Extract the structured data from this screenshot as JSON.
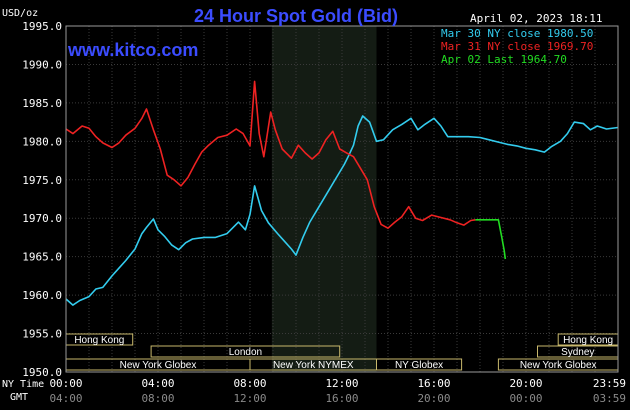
{
  "chart_data": {
    "type": "line",
    "title": "24 Hour Spot Gold (Bid)",
    "unit_label": "USD/oz",
    "watermark": "www.kitco.com",
    "timestamp": "April 02, 2023 18:11",
    "ylim": [
      1950,
      1995
    ],
    "y_ticks": [
      "1995.0",
      "1990.0",
      "1985.0",
      "1980.0",
      "1975.0",
      "1970.0",
      "1965.0",
      "1960.0",
      "1955.0",
      "1950.0"
    ],
    "x_ticks_ny": [
      "00:00",
      "04:00",
      "08:00",
      "12:00",
      "16:00",
      "20:00",
      "23:59"
    ],
    "x_ticks_gmt": [
      "04:00",
      "08:00",
      "12:00",
      "16:00",
      "20:00",
      "00:00",
      "03:59"
    ],
    "x_axis_ny_label": "NY Time",
    "x_axis_gmt_label": "GMT",
    "grid": true,
    "legend": [
      {
        "text": "Mar 30 NY close 1980.50",
        "color": "#33ccee"
      },
      {
        "text": "Mar 31 NY close 1969.70",
        "color": "#ee2222"
      },
      {
        "text": "Apr 02 Last 1964.70",
        "color": "#22dd22"
      }
    ],
    "series": [
      {
        "name": "Mar 30",
        "color": "#33ccee",
        "points": [
          [
            0.0,
            1959.5
          ],
          [
            0.3,
            1958.7
          ],
          [
            0.6,
            1959.3
          ],
          [
            1.0,
            1959.8
          ],
          [
            1.3,
            1960.8
          ],
          [
            1.6,
            1961.0
          ],
          [
            2.0,
            1962.5
          ],
          [
            2.3,
            1963.5
          ],
          [
            2.6,
            1964.5
          ],
          [
            3.0,
            1966.0
          ],
          [
            3.3,
            1968.0
          ],
          [
            3.5,
            1968.8
          ],
          [
            3.8,
            1969.9
          ],
          [
            4.0,
            1968.5
          ],
          [
            4.3,
            1967.6
          ],
          [
            4.6,
            1966.5
          ],
          [
            4.9,
            1965.9
          ],
          [
            5.2,
            1966.8
          ],
          [
            5.5,
            1967.3
          ],
          [
            6.0,
            1967.5
          ],
          [
            6.5,
            1967.5
          ],
          [
            7.0,
            1968.0
          ],
          [
            7.5,
            1969.5
          ],
          [
            7.8,
            1968.5
          ],
          [
            8.0,
            1970.5
          ],
          [
            8.2,
            1974.2
          ],
          [
            8.5,
            1971.0
          ],
          [
            8.8,
            1969.4
          ],
          [
            9.2,
            1968.0
          ],
          [
            9.5,
            1967.0
          ],
          [
            9.8,
            1966.0
          ],
          [
            10.0,
            1965.2
          ],
          [
            10.3,
            1967.5
          ],
          [
            10.6,
            1969.5
          ],
          [
            11.0,
            1971.5
          ],
          [
            11.4,
            1973.5
          ],
          [
            11.8,
            1975.5
          ],
          [
            12.1,
            1977.0
          ],
          [
            12.3,
            1978.2
          ],
          [
            12.5,
            1979.5
          ],
          [
            12.7,
            1982.0
          ],
          [
            12.9,
            1983.3
          ],
          [
            13.2,
            1982.5
          ],
          [
            13.5,
            1980.0
          ],
          [
            13.8,
            1980.2
          ],
          [
            14.2,
            1981.5
          ],
          [
            14.6,
            1982.2
          ],
          [
            15.0,
            1983.0
          ],
          [
            15.3,
            1981.5
          ],
          [
            15.6,
            1982.2
          ],
          [
            16.0,
            1983.0
          ],
          [
            16.3,
            1982.0
          ],
          [
            16.6,
            1980.6
          ],
          [
            17.0,
            1980.6
          ],
          [
            17.5,
            1980.6
          ],
          [
            18.0,
            1980.5
          ],
          [
            18.4,
            1980.2
          ],
          [
            18.8,
            1979.9
          ],
          [
            19.2,
            1979.6
          ],
          [
            19.6,
            1979.4
          ],
          [
            20.0,
            1979.1
          ],
          [
            20.4,
            1978.9
          ],
          [
            20.8,
            1978.6
          ],
          [
            21.1,
            1979.3
          ],
          [
            21.5,
            1980.0
          ],
          [
            21.8,
            1981.0
          ],
          [
            22.1,
            1982.5
          ],
          [
            22.5,
            1982.3
          ],
          [
            22.8,
            1981.5
          ],
          [
            23.1,
            1982.0
          ],
          [
            23.5,
            1981.6
          ],
          [
            24.0,
            1981.8
          ]
        ]
      },
      {
        "name": "Mar 31",
        "color": "#ee2222",
        "points": [
          [
            0.0,
            1981.6
          ],
          [
            0.3,
            1981.0
          ],
          [
            0.7,
            1982.0
          ],
          [
            1.0,
            1981.7
          ],
          [
            1.3,
            1980.6
          ],
          [
            1.6,
            1979.8
          ],
          [
            2.0,
            1979.2
          ],
          [
            2.3,
            1979.8
          ],
          [
            2.6,
            1980.8
          ],
          [
            3.0,
            1981.7
          ],
          [
            3.3,
            1983.0
          ],
          [
            3.5,
            1984.2
          ],
          [
            3.8,
            1981.5
          ],
          [
            4.1,
            1979.0
          ],
          [
            4.4,
            1975.6
          ],
          [
            4.7,
            1975.0
          ],
          [
            5.0,
            1974.2
          ],
          [
            5.3,
            1975.3
          ],
          [
            5.6,
            1977.0
          ],
          [
            5.9,
            1978.6
          ],
          [
            6.2,
            1979.5
          ],
          [
            6.6,
            1980.5
          ],
          [
            7.0,
            1980.8
          ],
          [
            7.4,
            1981.6
          ],
          [
            7.7,
            1981.0
          ],
          [
            8.0,
            1979.4
          ],
          [
            8.2,
            1987.8
          ],
          [
            8.4,
            1981.0
          ],
          [
            8.6,
            1978.0
          ],
          [
            8.9,
            1983.8
          ],
          [
            9.1,
            1981.5
          ],
          [
            9.4,
            1979.0
          ],
          [
            9.8,
            1977.8
          ],
          [
            10.1,
            1979.5
          ],
          [
            10.4,
            1978.5
          ],
          [
            10.7,
            1977.7
          ],
          [
            11.0,
            1978.5
          ],
          [
            11.3,
            1980.2
          ],
          [
            11.6,
            1981.3
          ],
          [
            11.9,
            1979.0
          ],
          [
            12.2,
            1978.5
          ],
          [
            12.5,
            1978.0
          ],
          [
            12.8,
            1976.5
          ],
          [
            13.1,
            1975.0
          ],
          [
            13.4,
            1971.5
          ],
          [
            13.7,
            1969.2
          ],
          [
            14.0,
            1968.7
          ],
          [
            14.3,
            1969.5
          ],
          [
            14.6,
            1970.2
          ],
          [
            14.9,
            1971.5
          ],
          [
            15.2,
            1970.0
          ],
          [
            15.5,
            1969.7
          ],
          [
            15.9,
            1970.4
          ],
          [
            16.3,
            1970.1
          ],
          [
            16.7,
            1969.8
          ],
          [
            17.0,
            1969.4
          ],
          [
            17.3,
            1969.1
          ],
          [
            17.6,
            1969.7
          ],
          [
            17.8,
            1969.8
          ]
        ]
      },
      {
        "name": "Apr 02",
        "color": "#22dd22",
        "points": [
          [
            17.8,
            1969.8
          ],
          [
            18.5,
            1969.8
          ],
          [
            18.8,
            1969.8
          ],
          [
            18.95,
            1967.5
          ],
          [
            19.05,
            1965.8
          ],
          [
            19.1,
            1964.7
          ]
        ]
      }
    ],
    "sessions": [
      {
        "label": "Hong Kong",
        "start": 0.0,
        "end": 2.9,
        "row": 0
      },
      {
        "label": "Hong Kong",
        "start": 21.4,
        "end": 24.0,
        "row": 0
      },
      {
        "label": "London",
        "start": 3.7,
        "end": 11.9,
        "row": 1
      },
      {
        "label": "Sydney",
        "start": 20.5,
        "end": 24.0,
        "row": 1
      },
      {
        "label": "New York Globex",
        "start": 0.0,
        "end": 8.0,
        "row": 2
      },
      {
        "label": "New York NYMEX",
        "start": 8.0,
        "end": 13.5,
        "row": 2
      },
      {
        "label": "NY Globex",
        "start": 13.5,
        "end": 17.2,
        "row": 2
      },
      {
        "label": "New York Globex",
        "start": 18.8,
        "end": 24.0,
        "row": 2
      }
    ],
    "highlight_range": [
      8.95,
      13.5
    ]
  }
}
